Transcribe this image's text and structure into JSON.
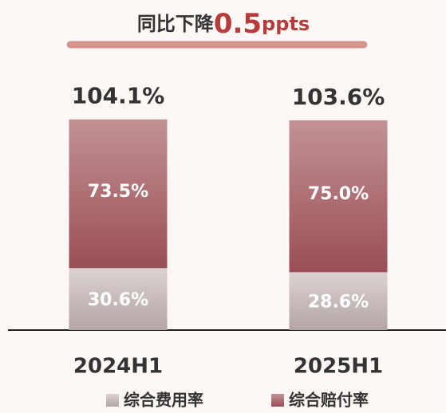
{
  "chart_data": {
    "type": "stacked-bar",
    "title": [
      "同比下降",
      "0.5",
      "ppts"
    ],
    "categories": [
      "2024H1",
      "2025H1"
    ],
    "series": [
      {
        "name": "综合费用率",
        "color": "#b3a5a5",
        "values": [
          30.6,
          28.6
        ],
        "value_labels": [
          "30.6%",
          "28.6%"
        ]
      },
      {
        "name": "综合赔付率",
        "color": "#9a4e55",
        "values": [
          73.5,
          75.0
        ],
        "value_labels": [
          "73.5%",
          "75.0%"
        ]
      }
    ],
    "totals": [
      104.1,
      103.6
    ],
    "total_labels": [
      "104.1%",
      "103.6%"
    ],
    "ylim": [
      0,
      115
    ]
  }
}
